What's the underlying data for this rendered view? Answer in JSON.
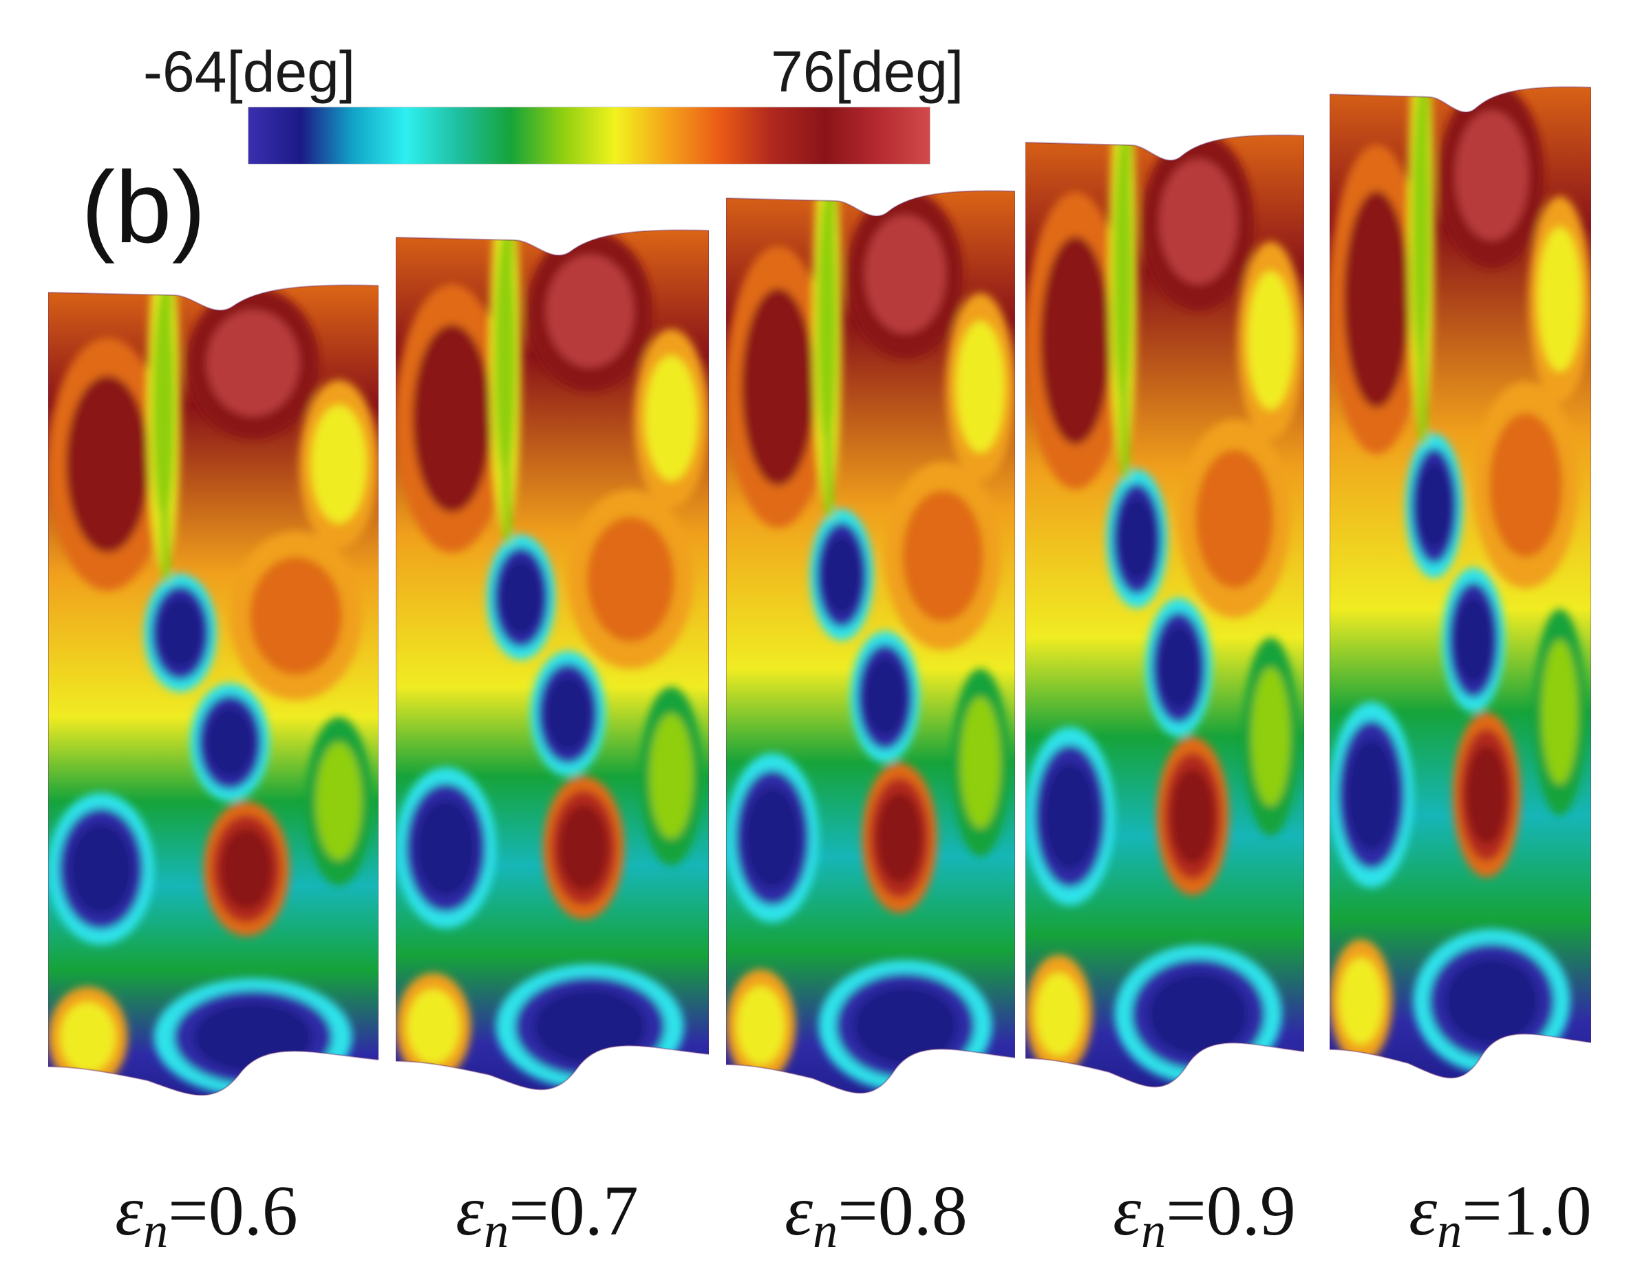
{
  "figure": {
    "panel_label": "(b)",
    "colorbar": {
      "min_label": "-64[deg]",
      "max_label": "76[deg]",
      "min_value": -64,
      "max_value": 76,
      "unit": "deg",
      "colormap_stops": [
        "#3a2fb0",
        "#1c1a86",
        "#12a4c8",
        "#2ef0f0",
        "#1fbfa0",
        "#16a33a",
        "#8fcf10",
        "#f2f21e",
        "#f5a21a",
        "#ea5a16",
        "#b0281e",
        "#8a1418",
        "#b42a30",
        "#d24a4a"
      ]
    },
    "specimens": [
      {
        "symbol": "ε",
        "subscript": "n",
        "value_text": "=0.6",
        "strain": 0.6
      },
      {
        "symbol": "ε",
        "subscript": "n",
        "value_text": "=0.7",
        "strain": 0.7
      },
      {
        "symbol": "ε",
        "subscript": "n",
        "value_text": "=0.8",
        "strain": 0.8
      },
      {
        "symbol": "ε",
        "subscript": "n",
        "value_text": "=0.9",
        "strain": 0.9
      },
      {
        "symbol": "ε",
        "subscript": "n",
        "value_text": "=1.0",
        "strain": 1.0
      }
    ]
  }
}
